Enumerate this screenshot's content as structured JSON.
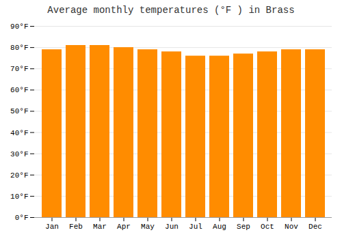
{
  "chart_data": {
    "type": "bar",
    "title": "Average monthly temperatures (°F ) in Brass",
    "categories": [
      "Jan",
      "Feb",
      "Mar",
      "Apr",
      "May",
      "Jun",
      "Jul",
      "Aug",
      "Sep",
      "Oct",
      "Nov",
      "Dec"
    ],
    "values": [
      79,
      81,
      81,
      80,
      79,
      78,
      76,
      76,
      77,
      78,
      79,
      79
    ],
    "color": "#FF8C00",
    "ylim": [
      0,
      90
    ],
    "yticks": [
      {
        "value": 0,
        "label": "0°F"
      },
      {
        "value": 10,
        "label": "10°F"
      },
      {
        "value": 20,
        "label": "20°F"
      },
      {
        "value": 30,
        "label": "30°F"
      },
      {
        "value": 40,
        "label": "40°F"
      },
      {
        "value": 50,
        "label": "50°F"
      },
      {
        "value": 60,
        "label": "60°F"
      },
      {
        "value": 70,
        "label": "70°F"
      },
      {
        "value": 80,
        "label": "80°F"
      },
      {
        "value": 90,
        "label": "90°F"
      }
    ],
    "grid": true
  }
}
